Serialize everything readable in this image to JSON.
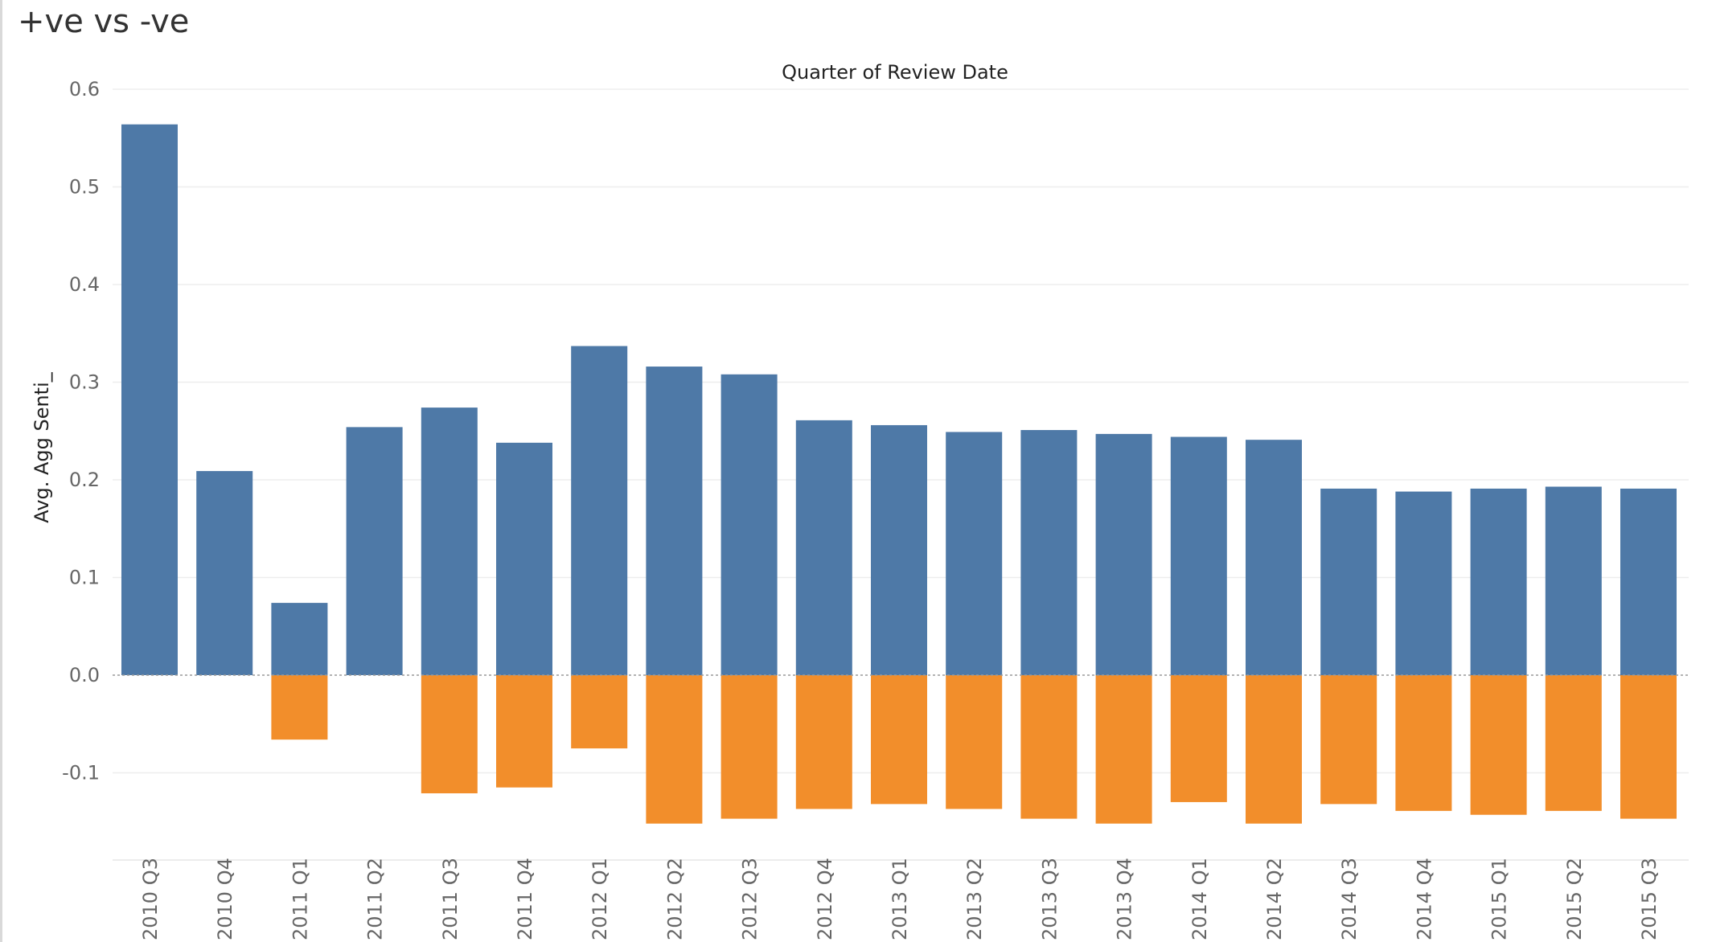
{
  "sheet": {
    "title": "+ve vs -ve"
  },
  "chart_data": {
    "type": "bar",
    "title": "Quarter of Review Date",
    "xlabel": "",
    "ylabel": "Avg. Agg Senti_",
    "ylim": [
      -0.19,
      0.6
    ],
    "yticks": [
      {
        "value": 0.6,
        "label": "0.6"
      },
      {
        "value": 0.5,
        "label": "0.5"
      },
      {
        "value": 0.4,
        "label": "0.4"
      },
      {
        "value": 0.3,
        "label": "0.3"
      },
      {
        "value": 0.2,
        "label": "0.2"
      },
      {
        "value": 0.1,
        "label": "0.1"
      },
      {
        "value": 0.0,
        "label": "0.0"
      },
      {
        "value": -0.1,
        "label": "-0.1"
      }
    ],
    "grid": true,
    "categories": [
      "2010 Q3",
      "2010 Q4",
      "2011 Q1",
      "2011 Q2",
      "2011 Q3",
      "2011 Q4",
      "2012 Q1",
      "2012 Q2",
      "2012 Q3",
      "2012 Q4",
      "2013 Q1",
      "2013 Q2",
      "2013 Q3",
      "2013 Q4",
      "2014 Q1",
      "2014 Q2",
      "2014 Q3",
      "2014 Q4",
      "2015 Q1",
      "2015 Q2",
      "2015 Q3"
    ],
    "series": [
      {
        "color": "#4e79a7",
        "values": [
          0.564,
          0.209,
          0.074,
          0.254,
          0.274,
          0.238,
          0.337,
          0.316,
          0.308,
          0.261,
          0.256,
          0.249,
          0.251,
          0.247,
          0.244,
          0.241,
          0.191,
          0.188,
          0.191,
          0.193,
          0.191
        ]
      },
      {
        "color": "#f28e2b",
        "values": [
          0.0,
          0.0,
          -0.066,
          0.0,
          -0.121,
          -0.115,
          -0.075,
          -0.152,
          -0.147,
          -0.137,
          -0.132,
          -0.137,
          -0.147,
          -0.152,
          -0.13,
          -0.152,
          -0.132,
          -0.139,
          -0.143,
          -0.139,
          -0.147
        ]
      }
    ]
  }
}
